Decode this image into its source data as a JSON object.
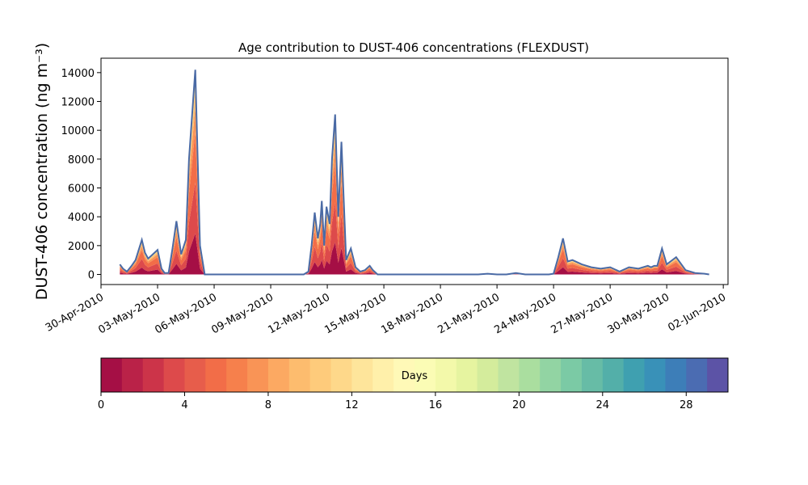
{
  "chart_data": {
    "type": "area",
    "title": "Age contribution to DUST-406 concentrations (FLEXDUST)",
    "xlabel": "",
    "ylabel": "DUST-406 concentration (ng m⁻³)",
    "ylim": [
      -700,
      15000
    ],
    "yticks": [
      0,
      2000,
      4000,
      6000,
      8000,
      10000,
      12000,
      14000
    ],
    "xlim": [
      "2010-04-30T00:00",
      "2010-06-02T06:00"
    ],
    "xticks": [
      "2010-04-30",
      "2010-05-03",
      "2010-05-06",
      "2010-05-09",
      "2010-05-12",
      "2010-05-15",
      "2010-05-18",
      "2010-05-21",
      "2010-05-24",
      "2010-05-27",
      "2010-05-30",
      "2010-06-02"
    ],
    "xtick_labels": [
      "30-Apr-2010",
      "03-May-2010",
      "06-May-2010",
      "09-May-2010",
      "12-May-2010",
      "15-May-2010",
      "18-May-2010",
      "21-May-2010",
      "24-May-2010",
      "27-May-2010",
      "30-May-2010",
      "02-Jun-2010"
    ],
    "grid": false,
    "total_line_color": "#4a6aa5",
    "total": {
      "x": [
        "2010-05-01T00:00",
        "2010-05-01T04:00",
        "2010-05-01T09:00",
        "2010-05-01T15:00",
        "2010-05-01T20:00",
        "2010-05-02T00:00",
        "2010-05-02T04:00",
        "2010-05-02T08:00",
        "2010-05-02T12:00",
        "2010-05-02T16:00",
        "2010-05-03T00:00",
        "2010-05-03T05:00",
        "2010-05-03T09:00",
        "2010-05-03T14:00",
        "2010-05-03T19:00",
        "2010-05-04T00:00",
        "2010-05-04T06:00",
        "2010-05-04T12:00",
        "2010-05-04T16:00",
        "2010-05-05T00:00",
        "2010-05-05T06:00",
        "2010-05-05T12:00",
        "2010-05-05T15:00",
        "2010-05-05T18:00",
        "2010-05-05T21:00",
        "2010-05-06T00:00",
        "2010-05-06T05:00",
        "2010-05-06T12:00",
        "2010-05-07T00:00",
        "2010-05-08T00:00",
        "2010-05-09T00:00",
        "2010-05-10T00:00",
        "2010-05-10T12:00",
        "2010-05-10T18:00",
        "2010-05-11T00:00",
        "2010-05-11T04:00",
        "2010-05-11T08:00",
        "2010-05-11T12:00",
        "2010-05-11T15:00",
        "2010-05-11T17:00",
        "2010-05-11T20:00",
        "2010-05-11T23:00",
        "2010-05-12T03:00",
        "2010-05-12T06:00",
        "2010-05-12T10:00",
        "2010-05-12T14:00",
        "2010-05-12T18:00",
        "2010-05-13T00:00",
        "2010-05-13T06:00",
        "2010-05-13T12:00",
        "2010-05-13T18:00",
        "2010-05-14T00:00",
        "2010-05-14T06:00",
        "2010-05-14T10:00",
        "2010-05-14T16:00",
        "2010-05-15T00:00",
        "2010-05-16T00:00",
        "2010-05-17T00:00",
        "2010-05-17T12:00",
        "2010-05-18T00:00",
        "2010-05-19T00:00",
        "2010-05-20T00:00",
        "2010-05-20T12:00",
        "2010-05-21T00:00",
        "2010-05-21T12:00",
        "2010-05-22T00:00",
        "2010-05-22T12:00",
        "2010-05-23T00:00",
        "2010-05-23T12:00",
        "2010-05-23T18:00",
        "2010-05-24T00:00",
        "2010-05-24T06:00",
        "2010-05-24T12:00",
        "2010-05-24T18:00",
        "2010-05-25T00:00",
        "2010-05-25T12:00",
        "2010-05-26T00:00",
        "2010-05-26T12:00",
        "2010-05-27T00:00",
        "2010-05-27T12:00",
        "2010-05-28T00:00",
        "2010-05-28T12:00",
        "2010-05-29T00:00",
        "2010-05-29T04:00",
        "2010-05-29T08:00",
        "2010-05-29T12:00",
        "2010-05-29T18:00",
        "2010-05-30T00:00",
        "2010-05-30T12:00",
        "2010-05-31T00:00",
        "2010-05-31T12:00",
        "2010-06-01T00:00",
        "2010-06-01T06:00"
      ],
      "values": [
        700,
        400,
        200,
        600,
        1000,
        1700,
        2400,
        1500,
        1100,
        1300,
        1700,
        400,
        100,
        100,
        1800,
        3700,
        1400,
        2400,
        8000,
        14200,
        2000,
        0,
        0,
        0,
        0,
        0,
        0,
        0,
        0,
        0,
        0,
        0,
        0,
        0,
        200,
        2000,
        4300,
        2500,
        3500,
        5100,
        2000,
        4700,
        3500,
        8000,
        11100,
        4000,
        9200,
        1000,
        1800,
        500,
        200,
        300,
        600,
        300,
        0,
        0,
        0,
        0,
        0,
        0,
        0,
        0,
        50,
        0,
        0,
        100,
        0,
        0,
        0,
        0,
        50,
        1200,
        2500,
        900,
        1000,
        700,
        500,
        400,
        500,
        200,
        500,
        400,
        600,
        500,
        600,
        600,
        1800,
        700,
        1200,
        300,
        100,
        50,
        0
      ]
    },
    "colorbar": {
      "label": "Days",
      "min": 0,
      "max": 30,
      "ticks": [
        0,
        4,
        8,
        12,
        16,
        20,
        24,
        28
      ],
      "tick_labels": [
        "0",
        "4",
        "8",
        "12",
        "16",
        "20",
        "24",
        "28"
      ],
      "colors": [
        "#a50f45",
        "#ba2248",
        "#cc3449",
        "#dd4a4b",
        "#e75d4b",
        "#f26d48",
        "#f6804c",
        "#f99456",
        "#fca962",
        "#fdbc6e",
        "#fecb7b",
        "#fed88a",
        "#fee59b",
        "#fff0aa",
        "#fff9b7",
        "#fbfcb5",
        "#f3f9aa",
        "#e6f4a0",
        "#d4ec9c",
        "#c0e4a0",
        "#aade9f",
        "#92d4a3",
        "#7bcaa5",
        "#67bca6",
        "#53afa9",
        "#3fa0b0",
        "#3991b8",
        "#3d7eb8",
        "#4b6cb2",
        "#5c53a6"
      ]
    }
  }
}
